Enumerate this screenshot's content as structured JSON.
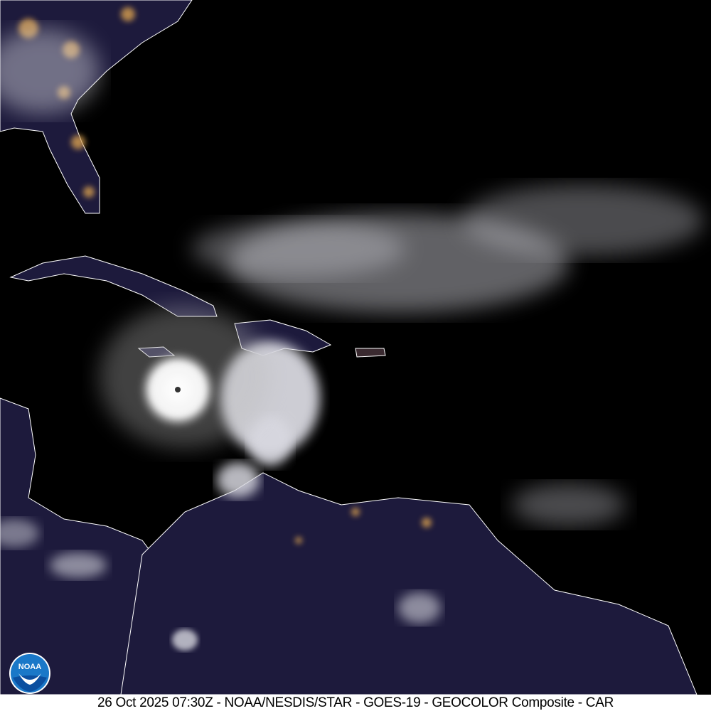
{
  "image": {
    "caption": "26 Oct 2025 07:30Z - NOAA/NESDIS/STAR - GOES-19 - GEOCOLOR Composite - CAR",
    "logo_text": "NOAA",
    "colors": {
      "ocean": "#000000",
      "land_night": "#1c1a3a",
      "cloud": "#e8e8ee",
      "city_lights": "#d9a050",
      "borders": "#ffffff"
    }
  }
}
